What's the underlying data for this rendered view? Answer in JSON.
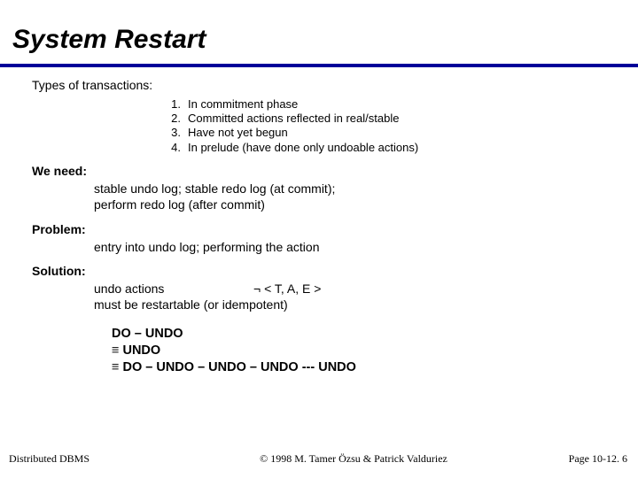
{
  "colors": {
    "rule": "#000099",
    "text": "#000000",
    "background": "#ffffff"
  },
  "title": "System Restart",
  "intro": "Types of transactions:",
  "types": [
    {
      "n": "1.",
      "t": "In commitment phase"
    },
    {
      "n": "2.",
      "t": "Committed actions reflected in real/stable"
    },
    {
      "n": "3.",
      "t": "Have not yet begun"
    },
    {
      "n": "4.",
      "t": "In prelude (have done only undoable actions)"
    }
  ],
  "need_label": "We need:",
  "need_lines": [
    "stable undo log; stable redo log (at commit);",
    "perform redo log (after commit)"
  ],
  "problem_label": "Problem:",
  "problem_line": "entry into undo log;  performing the action",
  "solution_label": "Solution:",
  "solution_left": "undo actions",
  "solution_right": "¬ < T, A, E >",
  "solution_line2": "must be restartable (or idempotent)",
  "do_undo": [
    "DO – UNDO",
    "≡ UNDO",
    "≡ DO – UNDO – UNDO – UNDO --- UNDO"
  ],
  "footer": {
    "left": "Distributed DBMS",
    "center": "© 1998 M. Tamer Özsu & Patrick Valduriez",
    "right": "Page 10-12. 6"
  }
}
